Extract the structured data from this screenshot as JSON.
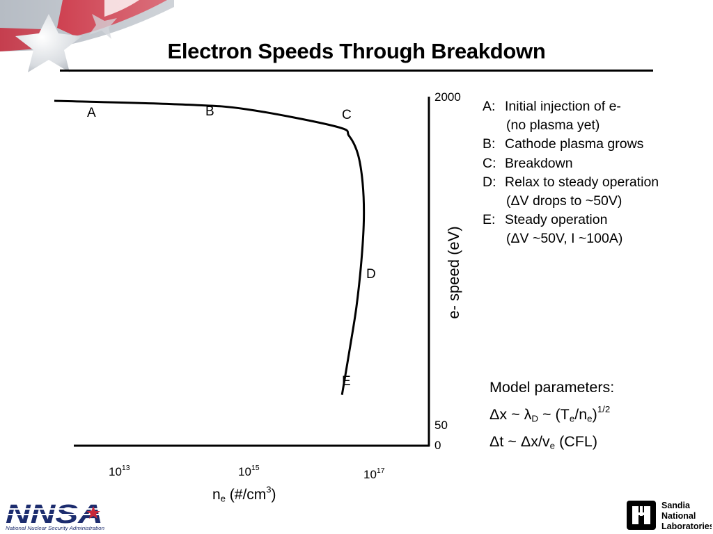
{
  "slide": {
    "title": "Electron Speeds Through Breakdown"
  },
  "chart_data": {
    "type": "line",
    "x_scale": "log",
    "y_scale": "log",
    "xlabel": "n_e (#/cm^3)",
    "ylabel": "e- speed (eV)",
    "x_ticks": [
      {
        "base": "10",
        "exp": "13"
      },
      {
        "base": "10",
        "exp": "15"
      },
      {
        "base": "10",
        "exp": "17"
      }
    ],
    "y_ticks": [
      "2000",
      "50",
      "0"
    ],
    "series": [
      {
        "points": [
          {
            "x": 1000000000000.0,
            "y": 2000
          },
          {
            "x": 100000000000000.0,
            "y": 1920
          },
          {
            "x": 1000000000000000.0,
            "y": 1820
          },
          {
            "x": 2.5e+16,
            "y": 1500
          },
          {
            "x": 4e+16,
            "y": 1350
          },
          {
            "x": 5.5e+16,
            "y": 1100
          },
          {
            "x": 6.5e+16,
            "y": 800
          },
          {
            "x": 6.8e+16,
            "y": 550
          },
          {
            "x": 6.3e+16,
            "y": 350
          },
          {
            "x": 5.2e+16,
            "y": 200
          },
          {
            "x": 4e+16,
            "y": 120
          },
          {
            "x": 3.1e+16,
            "y": 75
          }
        ]
      }
    ],
    "point_labels": [
      {
        "text": "A",
        "x": 12000000000000.0
      },
      {
        "text": "B",
        "x": 130000000000000.0
      },
      {
        "text": "C",
        "x": 5e+16
      },
      {
        "text": "D",
        "x": 7e+16
      },
      {
        "text": "E",
        "x": 5.5e+16
      }
    ],
    "grid": false,
    "legend": "none"
  },
  "legend_notes": [
    {
      "key": "A:",
      "text": "Initial injection of e-",
      "cont": "(no plasma yet)"
    },
    {
      "key": "B:",
      "text": "Cathode plasma grows",
      "cont": ""
    },
    {
      "key": "C:",
      "text": "Breakdown",
      "cont": ""
    },
    {
      "key": "D:",
      "text": "Relax to steady operation",
      "cont": "(ΔV drops to ~50V)"
    },
    {
      "key": "E:",
      "text": "Steady operation",
      "cont": "(ΔV ~50V, I ~100A)"
    }
  ],
  "model": {
    "heading": "Model parameters:",
    "dx": {
      "a": "Δx ~ λ",
      "a_sub": "D",
      "b": " ~ (T",
      "b_sub": "e",
      "c": "/n",
      "c_sub": "e",
      "d": ")",
      "sup": "1/2"
    },
    "dt": {
      "a": "Δt ~ Δx/v",
      "a_sub": "e",
      "b": " (CFL)"
    }
  },
  "axis_text": {
    "xlabel": {
      "a": "n",
      "sub": "e",
      "b": " (#/cm",
      "sup": "3",
      "c": ")"
    },
    "ylabel": "e- speed (eV)"
  },
  "logos": {
    "nnsa": {
      "text": "NNSA",
      "caption": "National Nuclear Security Administration"
    },
    "sandia": {
      "line1": "Sandia",
      "line2": "National",
      "line3": "Laboratories"
    }
  },
  "colors": {
    "banner_red": "#c8283a",
    "banner_gray": "#b6bcc4",
    "nnsa_navy": "#1c2c6e"
  }
}
